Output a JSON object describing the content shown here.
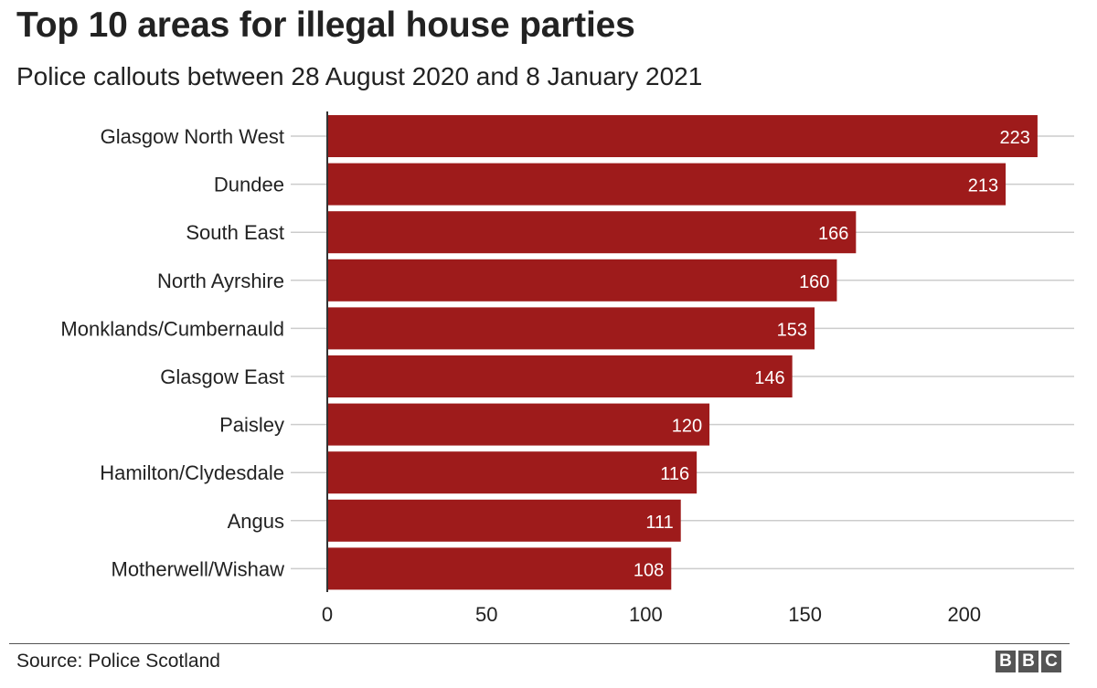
{
  "header": {
    "title": "Top 10 areas for illegal house parties",
    "subtitle": "Police callouts between 28 August 2020 and 8 January 2021"
  },
  "footer": {
    "source": "Source: Police Scotland",
    "logo_letters": [
      "B",
      "B",
      "C"
    ]
  },
  "colors": {
    "bar": "#9e1b1b",
    "grid": "#cccccc",
    "text": "#222222"
  },
  "chart_data": {
    "type": "bar",
    "orientation": "horizontal",
    "title": "Top 10 areas for illegal house parties",
    "subtitle": "Police callouts between 28 August 2020 and 8 January 2021",
    "categories": [
      "Glasgow North West",
      "Dundee",
      "South  East",
      "North Ayrshire",
      "Monklands/Cumbernauld",
      "Glasgow East",
      "Paisley",
      "Hamilton/Clydesdale",
      "Angus",
      "Motherwell/Wishaw"
    ],
    "values": [
      223,
      213,
      166,
      160,
      153,
      146,
      120,
      116,
      111,
      108
    ],
    "data_labels": [
      "223",
      "213",
      "166",
      "160",
      "153",
      "146",
      "120",
      "116",
      "111",
      "108"
    ],
    "xlim": [
      0,
      235
    ],
    "xticks": [
      0,
      50,
      100,
      150,
      200
    ],
    "xtick_labels": [
      "0",
      "50",
      "100",
      "150",
      "200"
    ],
    "xlabel": "",
    "ylabel": "",
    "grid": "horizontal",
    "legend": "none"
  }
}
